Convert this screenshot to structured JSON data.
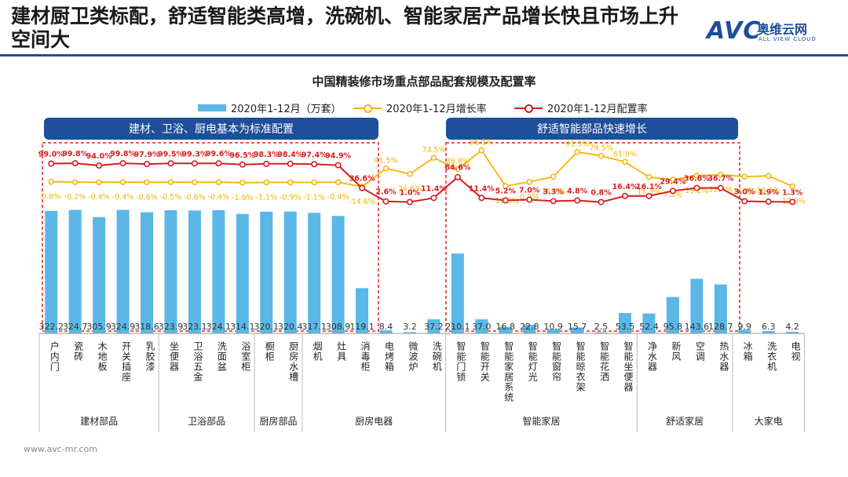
{
  "header": {
    "title": "建材厨卫类标配，舒适智能类高增，洗碗机、智能家居产品增长快且市场上升空间大",
    "logo_avc": "AVC",
    "logo_cn": "奥维云网",
    "logo_en": "ALL VIEW CLOUD"
  },
  "footer": {
    "url": "www.avc-mr.com"
  },
  "banners": {
    "left": "建材、卫浴、厨电基本为标准配置",
    "right": "舒适智能部品快速增长"
  },
  "colors": {
    "bar": "#5bb7e6",
    "growth": "#f5b400",
    "rate": "#d61f1f",
    "accent": "#1f4e9a",
    "box": "#e0231c"
  },
  "chart_data": {
    "type": "bar",
    "title": "中国精装修市场重点部品配套规模及配置率",
    "categories": [
      "户内门",
      "瓷砖",
      "木地板",
      "开关插座",
      "乳胶漆",
      "坐便器",
      "卫浴五金",
      "洗面盆",
      "浴室柜",
      "橱柜",
      "厨房水槽",
      "烟机",
      "灶具",
      "消毒柜",
      "电烤箱",
      "微波炉",
      "洗碗机",
      "智能门锁",
      "智能开关",
      "智能家居系统",
      "智能灯光",
      "智能窗帘",
      "智能晾衣架",
      "智能花洒",
      "智能坐便器",
      "净水器",
      "新风",
      "空调",
      "热水器",
      "冰箱",
      "洗衣机",
      "电视"
    ],
    "series": [
      {
        "name": "2020年1-12月（万套）",
        "type": "bar",
        "values": [
          322.2,
          324.7,
          305.9,
          324.9,
          318.6,
          323.9,
          323.1,
          324.1,
          314.1,
          320.1,
          320.4,
          317.1,
          308.9,
          119.1,
          8.4,
          3.2,
          37.2,
          210.1,
          37.0,
          16.8,
          22.8,
          10.9,
          15.7,
          2.5,
          53.5,
          52.4,
          95.8,
          143.6,
          128.7,
          9.9,
          6.3,
          4.2
        ],
        "labels": [
          "322.2",
          "324.7",
          "305.9",
          "324.9",
          "318.6",
          "323.9",
          "323.1",
          "324.1",
          "314.1",
          "320.1",
          "320.4",
          "317.1",
          "308.9",
          "119.1",
          "8.4",
          "3.2",
          "37.2",
          "210.1",
          "37.0",
          "16.8",
          "22.8",
          "10.9",
          "15.7",
          "2.5",
          "53.5",
          "52.4",
          "95.8",
          "143.6",
          "128.7",
          "9.9",
          "6.3",
          "4.2"
        ]
      },
      {
        "name": "2020年1-12月增长率",
        "type": "line",
        "values": [
          0.8,
          -0.2,
          -0.4,
          -0.4,
          -0.6,
          -0.5,
          -0.6,
          -0.4,
          -1.9,
          -1.1,
          -0.9,
          -1.1,
          -0.4,
          -14.6,
          41.5,
          24.6,
          73.5,
          38.8,
          96.1,
          -12.3,
          0.2,
          16.2,
          91.3,
          79.5,
          61.0,
          15.3,
          7.2,
          19.2,
          22.4,
          16.5,
          18.5,
          -12.9
        ],
        "labels": [
          "0.8%",
          "-0.2%",
          "-0.4%",
          "-0.4%",
          "-0.6%",
          "-0.5%",
          "-0.6%",
          "-0.4%",
          "-1.9%",
          "-1.1%",
          "-0.9%",
          "-1.1%",
          "-0.4%",
          "-14.6%",
          "41.5%",
          "24.6%",
          "73.5%",
          "38.8%",
          "96.1%",
          "-12.3%",
          "0.2%",
          "16.2%",
          "91.3%",
          "79.5%",
          "61.0%",
          "15.3%",
          "7.2%",
          "19.2%",
          "22.4%",
          "16.5%",
          "18.5%",
          "-12.9%"
        ]
      },
      {
        "name": "2020年1-12月配置率",
        "type": "line",
        "values": [
          99.0,
          99.8,
          94.0,
          99.8,
          97.9,
          99.5,
          99.3,
          99.6,
          96.5,
          98.3,
          98.4,
          97.4,
          94.9,
          36.6,
          2.6,
          1.0,
          11.4,
          64.6,
          11.4,
          5.2,
          7.0,
          3.3,
          4.8,
          0.8,
          16.4,
          16.1,
          29.4,
          36.8,
          36.7,
          3.0,
          1.9,
          1.3
        ],
        "labels": [
          "99.0%",
          "99.8%",
          "94.0%",
          "99.8%",
          "97.9%",
          "99.5%",
          "99.3%",
          "99.6%",
          "96.5%",
          "98.3%",
          "98.4%",
          "97.4%",
          "94.9%",
          "36.6%",
          "2.6%",
          "1.0%",
          "11.4%",
          "64.6%",
          "11.4%",
          "5.2%",
          "7.0%",
          "3.3%",
          "4.8%",
          "0.8%",
          "16.4%",
          "16.1%",
          "29.4%",
          "36.8%",
          "36.7%",
          "3.0%",
          "1.9%",
          "1.3%"
        ]
      }
    ],
    "groups": [
      {
        "label": "建材部品",
        "start": 0,
        "end": 4
      },
      {
        "label": "卫浴部品",
        "start": 5,
        "end": 8
      },
      {
        "label": "厨房部品",
        "start": 9,
        "end": 10
      },
      {
        "label": "厨房电器",
        "start": 11,
        "end": 16
      },
      {
        "label": "智能家居",
        "start": 17,
        "end": 24
      },
      {
        "label": "舒适家居",
        "start": 25,
        "end": 28
      },
      {
        "label": "大家电",
        "start": 29,
        "end": 31
      }
    ],
    "legend_position": "top",
    "grid": false
  }
}
